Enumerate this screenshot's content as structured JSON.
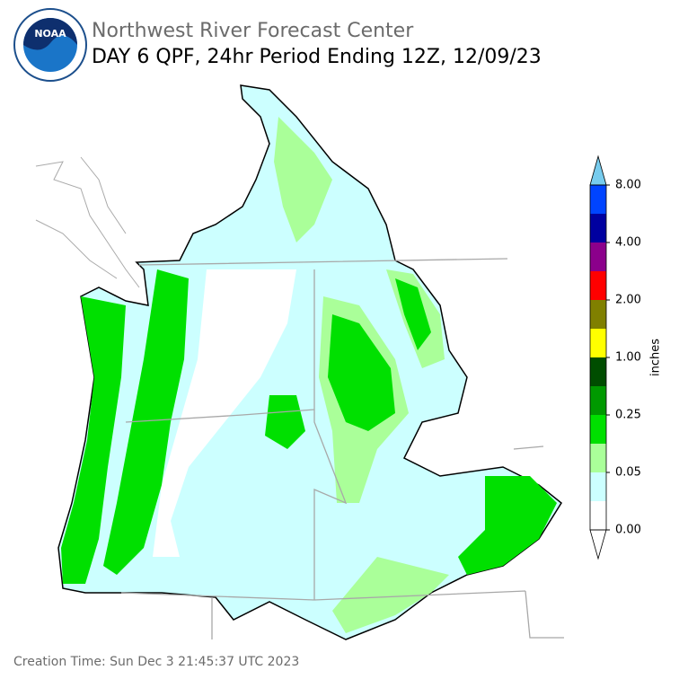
{
  "header": {
    "agency": "Northwest River Forecast Center",
    "title": "DAY 6 QPF, 24hr Period Ending 12Z, 12/09/23",
    "logo_text": "NOAA"
  },
  "colorbar": {
    "label": "inches",
    "colors": [
      "#ffffff",
      "#ccffff",
      "#aaff99",
      "#00e000",
      "#009900",
      "#004d00",
      "#ffff00",
      "#808000",
      "#ff0000",
      "#8b008b",
      "#0000a0",
      "#0044ff"
    ],
    "under_color": "#ffffff",
    "over_color": "#77ccee",
    "ticks": [
      {
        "value": 0,
        "label": "0.00"
      },
      {
        "value": 0.05,
        "label": "0.05"
      },
      {
        "value": 0.25,
        "label": "0.25"
      },
      {
        "value": 1,
        "label": "1.00"
      },
      {
        "value": 2,
        "label": "2.00"
      },
      {
        "value": 4,
        "label": "4.00"
      },
      {
        "value": 8,
        "label": "8.00"
      }
    ]
  },
  "footer": {
    "creation_time": "Creation Time: Sun Dec 3 21:45:37 UTC 2023"
  }
}
